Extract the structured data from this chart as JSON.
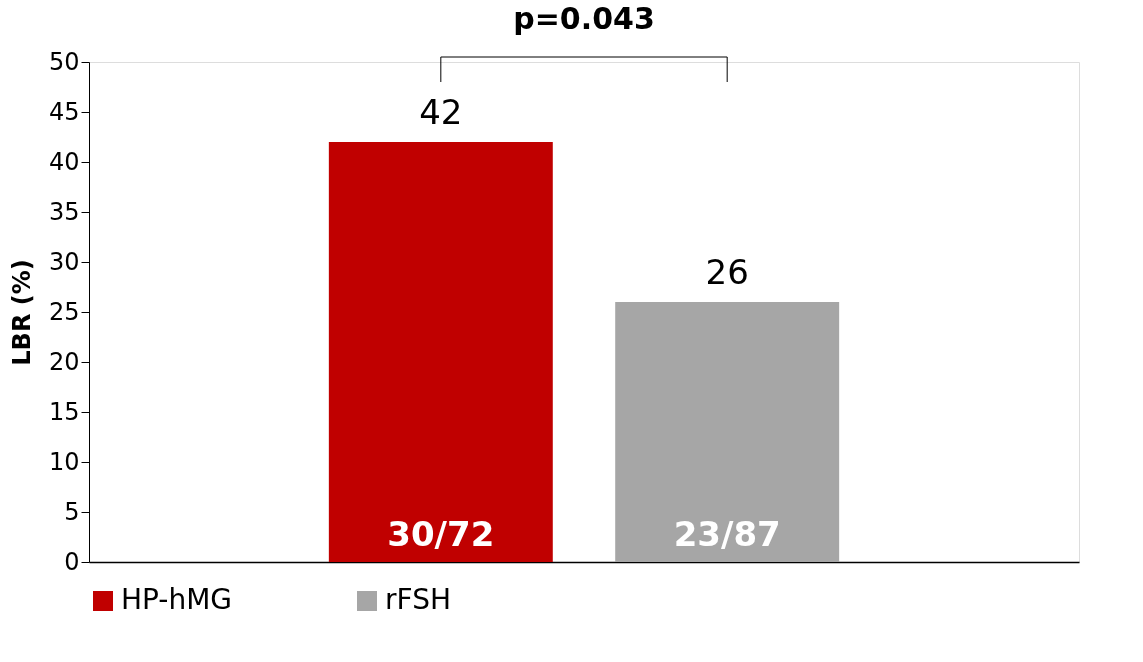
{
  "chart_data": {
    "type": "bar",
    "ylabel": "LBR (%)",
    "categories": [
      null
    ],
    "series": [
      {
        "name": "HP-hMG",
        "color": "#c00000",
        "values": [
          42
        ]
      },
      {
        "name": "rFSH",
        "color": "#a6a6a6",
        "values": [
          26
        ]
      }
    ],
    "ylim": [
      0,
      50
    ],
    "yticks": [
      0,
      5,
      10,
      15,
      20,
      25,
      30,
      35,
      40,
      45,
      50
    ],
    "data_labels": true,
    "grid": false,
    "legend": "bottom",
    "tick_labels": "y",
    "annotations": [
      "p=0.043",
      "30/72",
      "23/87"
    ]
  }
}
